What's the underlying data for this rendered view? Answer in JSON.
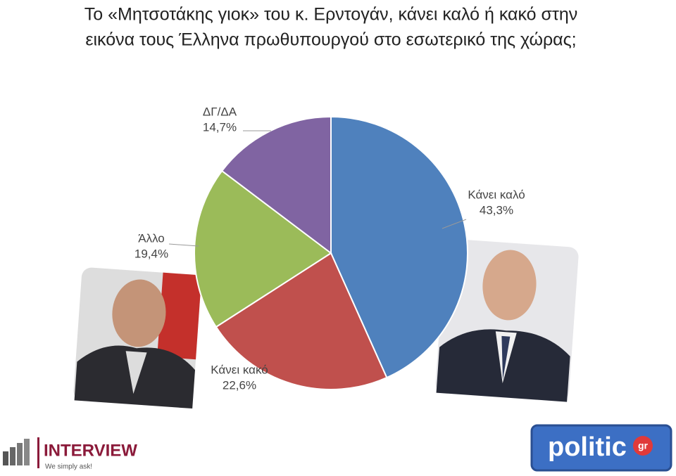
{
  "chart_data": {
    "type": "pie",
    "title": [
      "Το «Μητσοτάκης γιοκ» του κ. Ερντογάν, κάνει καλό ή κακό στην",
      "εικόνα τους Έλληνα πρωθυπουργού στο εσωτερικό της χώρας;"
    ],
    "categories": [
      "Κάνει καλό",
      "Κάνει κακό",
      "Άλλο",
      "ΔΓ/ΔΑ"
    ],
    "values": [
      43.3,
      22.6,
      19.4,
      14.7
    ],
    "value_labels": [
      "43,3%",
      "22,6%",
      "19,4%",
      "14,7%"
    ],
    "colors": [
      "#4f81bd",
      "#c0504d",
      "#9bbb59",
      "#8064a2"
    ]
  },
  "branding": {
    "left_logo": "INTERVIEW",
    "left_tagline": "We simply ask!",
    "right_logo": "politic",
    "right_logo_suffix": "gr"
  }
}
